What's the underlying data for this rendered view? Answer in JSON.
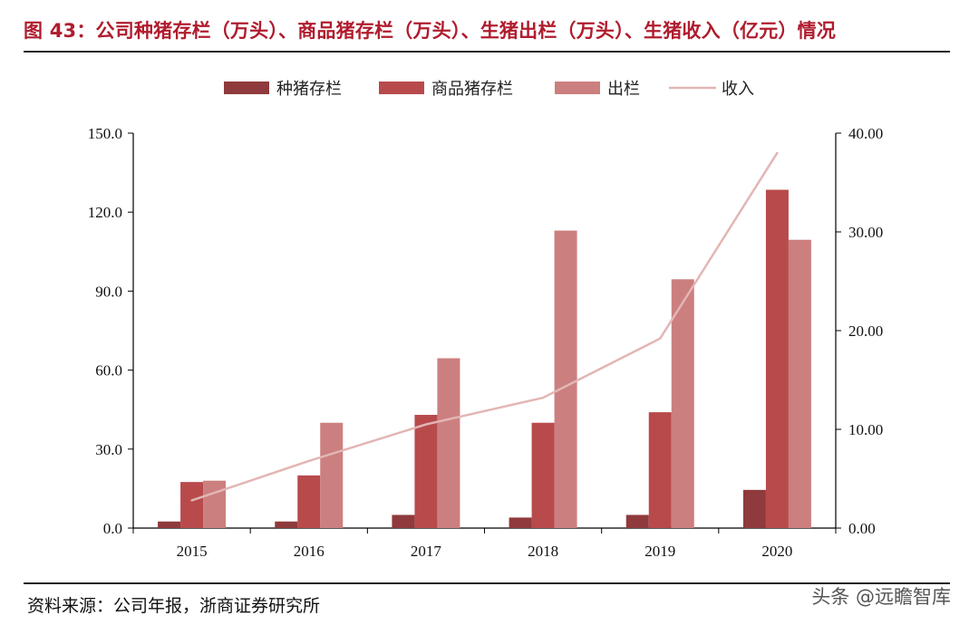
{
  "title": "图 43：公司种猪存栏（万头）、商品猪存栏（万头）、生猪出栏（万头）、生猪收入（亿元）情况",
  "source": "资料来源：公司年报，浙商证券研究所",
  "watermark": "头条 @远瞻智库",
  "colors": {
    "title": "#b01c2e",
    "sow": "#8f3a3c",
    "commercial": "#b84a4c",
    "slaughter": "#cc7f7f",
    "revenue": "#e2b6b4"
  },
  "chart_data": {
    "type": "bar",
    "categories": [
      "2015",
      "2016",
      "2017",
      "2018",
      "2019",
      "2020"
    ],
    "series": [
      {
        "name": "种猪存栏",
        "kind": "bar",
        "axis": "left",
        "values": [
          2.5,
          2.5,
          5.0,
          4.0,
          5.0,
          14.5
        ]
      },
      {
        "name": "商品猪存栏",
        "kind": "bar",
        "axis": "left",
        "values": [
          17.5,
          20.0,
          43.0,
          40.0,
          44.0,
          128.5
        ]
      },
      {
        "name": "出栏",
        "kind": "bar",
        "axis": "left",
        "values": [
          18.0,
          40.0,
          64.5,
          113.0,
          94.5,
          109.5
        ]
      },
      {
        "name": "收入",
        "kind": "line",
        "axis": "right",
        "values": [
          2.8,
          6.8,
          10.5,
          13.2,
          19.2,
          38.0
        ]
      }
    ],
    "y_left": {
      "ylim": [
        0,
        150
      ],
      "ticks": [
        "0.0",
        "30.0",
        "60.0",
        "90.0",
        "120.0",
        "150.0"
      ]
    },
    "y_right": {
      "ylim": [
        0,
        40
      ],
      "ticks": [
        "0.00",
        "10.00",
        "20.00",
        "30.00",
        "40.00"
      ]
    },
    "legend_position": "top-center",
    "grid": false
  }
}
